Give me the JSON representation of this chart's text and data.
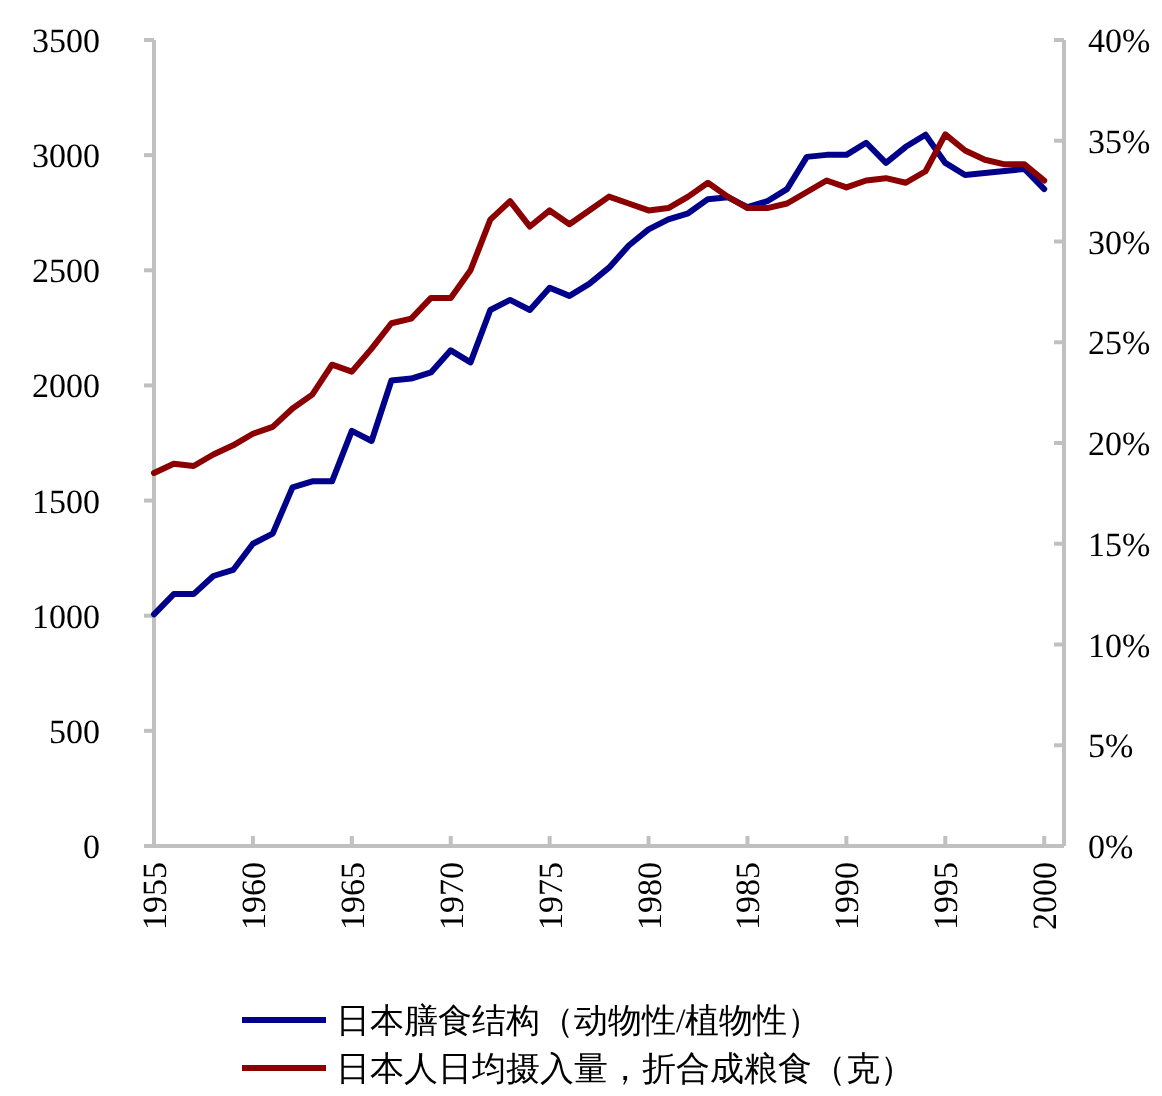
{
  "chart_data": {
    "type": "line",
    "x": [
      1955,
      1956,
      1957,
      1958,
      1959,
      1960,
      1961,
      1962,
      1963,
      1964,
      1965,
      1966,
      1967,
      1968,
      1969,
      1970,
      1971,
      1972,
      1973,
      1974,
      1975,
      1976,
      1977,
      1978,
      1979,
      1980,
      1981,
      1982,
      1983,
      1984,
      1985,
      1986,
      1987,
      1988,
      1989,
      1990,
      1991,
      1992,
      1993,
      1994,
      1995,
      1996,
      1997,
      1998,
      1999,
      2000
    ],
    "series": [
      {
        "name": "日本膳食结构（动物性/植物性）",
        "color": "#00008b",
        "axis": "y2",
        "values": [
          11.5,
          12.5,
          12.5,
          13.4,
          13.7,
          15.0,
          15.5,
          17.8,
          18.1,
          18.1,
          20.6,
          20.1,
          23.1,
          23.2,
          23.5,
          24.6,
          24.0,
          26.6,
          27.1,
          26.6,
          27.7,
          27.3,
          27.9,
          28.7,
          29.8,
          30.6,
          31.1,
          31.4,
          32.1,
          32.2,
          31.7,
          32.0,
          32.6,
          34.2,
          34.3,
          34.3,
          34.9,
          33.9,
          34.7,
          35.3,
          33.9,
          33.3,
          33.4,
          33.5,
          33.6,
          32.6
        ]
      },
      {
        "name": "日本人日均摄入量，折合成粮食（克）",
        "color": "#8b0000",
        "values": [
          1620,
          1660,
          1650,
          1700,
          1740,
          1790,
          1820,
          1900,
          1960,
          2090,
          2060,
          2160,
          2270,
          2290,
          2380,
          2380,
          2500,
          2720,
          2800,
          2690,
          2760,
          2700,
          2760,
          2820,
          2790,
          2760,
          2770,
          2820,
          2880,
          2820,
          2770,
          2770,
          2790,
          2840,
          2890,
          2860,
          2890,
          2900,
          2880,
          2930,
          3090,
          3020,
          2980,
          2960,
          2960,
          2890
        ]
      }
    ],
    "xlim": [
      1955,
      2001
    ],
    "xticks": [
      1955,
      1960,
      1965,
      1970,
      1975,
      1980,
      1985,
      1990,
      1995,
      2000
    ],
    "ylim": [
      0,
      3500
    ],
    "yticks": [
      0,
      500,
      1000,
      1500,
      2000,
      2500,
      3000,
      3500
    ],
    "y2lim": [
      0,
      40
    ],
    "y2ticks": [
      {
        "value": 0,
        "label": "0%"
      },
      {
        "value": 5,
        "label": "5%"
      },
      {
        "value": 10,
        "label": "10%"
      },
      {
        "value": 15,
        "label": "15%"
      },
      {
        "value": 20,
        "label": "20%"
      },
      {
        "value": 25,
        "label": "25%"
      },
      {
        "value": 30,
        "label": "30%"
      },
      {
        "value": 35,
        "label": "35%"
      },
      {
        "value": 40,
        "label": "40%"
      }
    ],
    "grid": false,
    "legend": "bottom",
    "marker": "none",
    "line_style": "solid"
  }
}
